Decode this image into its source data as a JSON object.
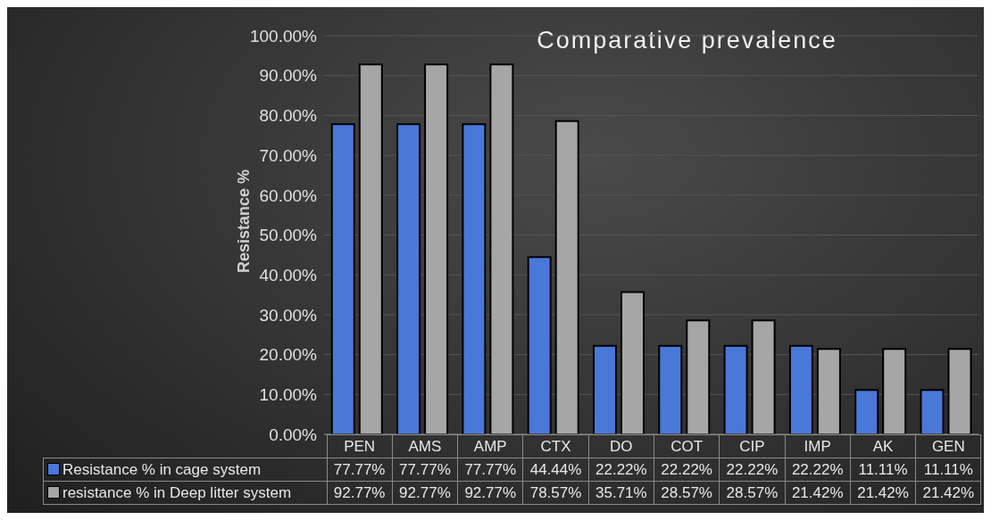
{
  "chart_data": {
    "type": "bar",
    "title": "Comparative prevalence",
    "ylabel": "Resistance %",
    "categories": [
      "PEN",
      "AMS",
      "AMP",
      "CTX",
      "DO",
      "COT",
      "CIP",
      "IMP",
      "AK",
      "GEN"
    ],
    "series": [
      {
        "name": "Resistance % in cage system",
        "color": "#4a78d8",
        "values": [
          77.77,
          77.77,
          77.77,
          44.44,
          22.22,
          22.22,
          22.22,
          22.22,
          11.11,
          11.11
        ],
        "value_labels": [
          "77.77%",
          "77.77%",
          "77.77%",
          "44.44%",
          "22.22%",
          "22.22%",
          "22.22%",
          "22.22%",
          "11.11%",
          "11.11%"
        ]
      },
      {
        "name": "resistance % in Deep litter system",
        "color": "#a6a6a6",
        "values": [
          92.77,
          92.77,
          92.77,
          78.57,
          35.71,
          28.57,
          28.57,
          21.42,
          21.42,
          21.42
        ],
        "value_labels": [
          "92.77%",
          "92.77%",
          "92.77%",
          "78.57%",
          "35.71%",
          "28.57%",
          "28.57%",
          "21.42%",
          "21.42%",
          "21.42%"
        ]
      }
    ],
    "ylim": [
      0,
      100
    ],
    "yticks": [
      {
        "value": 0,
        "label": "0.00%"
      },
      {
        "value": 10,
        "label": "10.00%"
      },
      {
        "value": 20,
        "label": "20.00%"
      },
      {
        "value": 30,
        "label": "30.00%"
      },
      {
        "value": 40,
        "label": "40.00%"
      },
      {
        "value": 50,
        "label": "50.00%"
      },
      {
        "value": 60,
        "label": "60.00%"
      },
      {
        "value": 70,
        "label": "70.00%"
      },
      {
        "value": 80,
        "label": "80.00%"
      },
      {
        "value": 90,
        "label": "90.00%"
      },
      {
        "value": 100,
        "label": "100.00%"
      }
    ],
    "grid": "y",
    "legend": "bottom"
  }
}
